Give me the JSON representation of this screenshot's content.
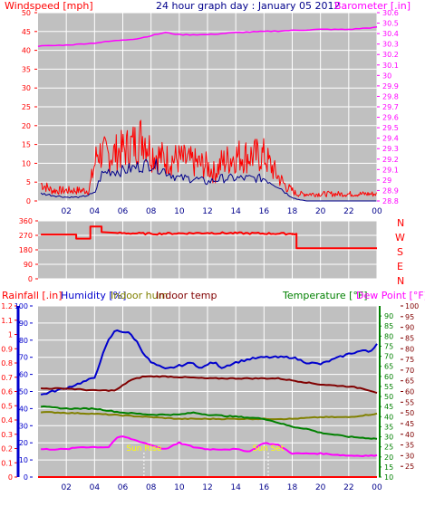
{
  "colors": {
    "background": "#ffffff",
    "plot_bg": "#c0c0c0",
    "grid": "#ffffff",
    "wind": "#ff0000",
    "wind_avg": "#00008b",
    "barometer": "#ff00ff",
    "winddir": "#ff0000",
    "rain": "#ff0000",
    "humidity": "#0000cd",
    "indoor_hum": "#808000",
    "indoor_temp": "#800000",
    "temperature": "#008000",
    "dew_point": "#ff00ff",
    "sunrise_marker": "#ffff00",
    "title": "#00008b"
  },
  "header": {
    "title": "24 hour graph day : January 05 2012",
    "windspeed_label": "Windspeed [mph]",
    "barometer_label": "Barometer [.in]"
  },
  "compass_labels": [
    "N",
    "W",
    "S",
    "E",
    "N"
  ],
  "legend2": {
    "rainfall": "Rainfall [.in]",
    "humidity": "Humidity [%]",
    "indoor_hum": "Indoor hum",
    "indoor_temp": "Indoor temp",
    "temperature": "Temperature [°F]",
    "dew_point": "Dew Point [°F]"
  },
  "sun_labels": {
    "sunrise": "Sun Rise",
    "sunset": "Sun Set"
  },
  "chart_data": [
    {
      "type": "line",
      "title": "24 hour graph day : January 05 2012",
      "x_ticks": [
        "02",
        "04",
        "06",
        "08",
        "10",
        "12",
        "14",
        "16",
        "18",
        "20",
        "22",
        "00"
      ],
      "ylabel": "Windspeed [mph]",
      "ylim": [
        0,
        50
      ],
      "y_ticks": [
        "0",
        "5",
        "10",
        "15",
        "20",
        "25",
        "30",
        "35",
        "40",
        "45",
        "50"
      ],
      "y2label": "Barometer [.in]",
      "y2lim": [
        28.8,
        30.6
      ],
      "y2_ticks": [
        "28.8",
        "28.9",
        "29",
        "29.1",
        "29.2",
        "29.3",
        "29.4",
        "29.5",
        "29.6",
        "29.7",
        "29.8",
        "29.9",
        "30",
        "30.1",
        "30.2",
        "30.3",
        "30.4",
        "30.5",
        "30.6"
      ],
      "grid": true,
      "series": [
        {
          "name": "Windspeed gust",
          "axis": "left",
          "x": [
            0.2,
            1,
            2,
            3,
            3.6,
            4.2,
            5,
            5.6,
            6.2,
            7,
            7.5,
            8,
            8.5,
            9,
            10,
            11,
            12,
            12.5,
            13,
            14,
            15,
            16,
            17,
            17.6,
            18,
            18.3,
            19,
            20,
            21,
            22,
            23,
            24
          ],
          "values": [
            5,
            3,
            3,
            3,
            3,
            14,
            13,
            14,
            15,
            17,
            19,
            14,
            13,
            12,
            12,
            11,
            10,
            8,
            11,
            13,
            13,
            13,
            7,
            4,
            3,
            2,
            2,
            2,
            2,
            2,
            2,
            2
          ]
        },
        {
          "name": "Windspeed",
          "axis": "left",
          "x": [
            0.2,
            1,
            2,
            3,
            4,
            4.5,
            5,
            6,
            7,
            8,
            8.5,
            9,
            10,
            11,
            12,
            13,
            14,
            15,
            16,
            17,
            17.6,
            18,
            18.3,
            19,
            20,
            21,
            22,
            23,
            24
          ],
          "values": [
            2,
            1.5,
            1,
            1,
            2,
            7,
            8,
            8,
            9,
            10,
            9,
            8,
            6,
            6,
            5,
            6,
            6,
            6,
            6,
            4,
            2,
            1,
            0.5,
            0,
            0,
            0,
            0,
            0,
            0
          ]
        },
        {
          "name": "Barometer",
          "axis": "right",
          "x": [
            0,
            2,
            4,
            6,
            7,
            8,
            9,
            10,
            12,
            14,
            16,
            18,
            20,
            22,
            24
          ],
          "values": [
            30.28,
            30.29,
            30.31,
            30.34,
            30.35,
            30.38,
            30.41,
            30.39,
            30.39,
            30.41,
            30.42,
            30.43,
            30.44,
            30.44,
            30.46
          ]
        }
      ]
    },
    {
      "type": "line",
      "ylim": [
        0,
        360
      ],
      "y_ticks": [
        "0",
        "90",
        "180",
        "270",
        "360"
      ],
      "series": [
        {
          "name": "Wind direction",
          "x": [
            0.2,
            2.7,
            2.7,
            3.7,
            3.7,
            4.5,
            4.5,
            5.5,
            8,
            12,
            18,
            18.3,
            18.3,
            24
          ],
          "values": [
            275,
            275,
            250,
            250,
            325,
            325,
            290,
            285,
            280,
            285,
            280,
            280,
            190,
            190
          ]
        }
      ]
    },
    {
      "type": "line",
      "x_ticks": [
        "02",
        "04",
        "06",
        "08",
        "10",
        "12",
        "14",
        "16",
        "18",
        "20",
        "22",
        "00"
      ],
      "rain_ylim": [
        0,
        1.2
      ],
      "rain_ticks": [
        "0",
        "0.1",
        "0.2",
        "0.3",
        "0.4",
        "0.5",
        "0.6",
        "0.7",
        "0.8",
        "0.9",
        "1",
        "1.1",
        "1.2"
      ],
      "humidity_ylim": [
        0,
        100
      ],
      "humidity_ticks": [
        "0",
        "10",
        "20",
        "30",
        "40",
        "50",
        "60",
        "70",
        "80",
        "90",
        "100"
      ],
      "temp_ylim": [
        10,
        95
      ],
      "temp_ticks": [
        "10",
        "15",
        "20",
        "25",
        "30",
        "35",
        "40",
        "45",
        "50",
        "55",
        "60",
        "65",
        "70",
        "75",
        "80",
        "85",
        "90"
      ],
      "dew_ylim": [
        20,
        100
      ],
      "dew_ticks": [
        "25",
        "30",
        "35",
        "40",
        "45",
        "50",
        "55",
        "60",
        "65",
        "70",
        "75",
        "80",
        "85",
        "90",
        "95",
        "100"
      ],
      "grid": true,
      "series": [
        {
          "name": "Humidity",
          "axis": "humidity",
          "x": [
            0.2,
            1,
            2,
            3,
            4,
            4.5,
            5,
            5.5,
            6.5,
            7,
            7.5,
            8,
            8.5,
            9,
            10,
            11,
            11.5,
            12,
            12.5,
            13,
            14,
            15,
            16,
            17,
            18,
            19,
            20,
            21,
            22,
            23,
            23.5,
            24
          ],
          "values": [
            48,
            50,
            52,
            55,
            58,
            70,
            80,
            86,
            84,
            79,
            72,
            67,
            65,
            63,
            65,
            67,
            63,
            66,
            67,
            64,
            67,
            69,
            70,
            70,
            70,
            67,
            66,
            69,
            72,
            74,
            73,
            78
          ]
        },
        {
          "name": "Indoor hum",
          "axis": "humidity",
          "x": [
            0.2,
            2,
            4,
            6,
            8,
            10,
            12,
            14,
            16,
            18,
            20,
            22,
            23,
            24
          ],
          "values": [
            38,
            37.5,
            37,
            36,
            35,
            34,
            34,
            34,
            34,
            34,
            35,
            35,
            36,
            37
          ]
        },
        {
          "name": "Indoor temp",
          "axis": "temp",
          "x": [
            0.2,
            2,
            4,
            5.5,
            6.5,
            7.5,
            9,
            12,
            14,
            16,
            17,
            18,
            20,
            22,
            23,
            24
          ],
          "values": [
            54,
            54,
            53,
            53,
            58,
            60,
            60,
            59,
            59,
            59,
            59,
            58,
            56,
            55,
            54,
            52
          ]
        },
        {
          "name": "Temperature",
          "axis": "temp",
          "x": [
            0.2,
            2,
            4,
            5,
            6,
            8,
            10,
            11,
            12,
            14,
            16,
            17,
            18,
            19,
            20,
            22,
            24
          ],
          "values": [
            45,
            44,
            44,
            43,
            42,
            41,
            41,
            42,
            41,
            40,
            39,
            37,
            35,
            34,
            32,
            30,
            29
          ]
        },
        {
          "name": "Dew Point",
          "axis": "dew",
          "x": [
            0.2,
            2,
            3,
            4,
            5,
            5.5,
            6,
            7,
            8,
            9,
            10,
            11,
            12,
            14,
            15,
            16,
            17,
            18,
            20,
            22,
            24
          ],
          "values": [
            33,
            33,
            34,
            34,
            34,
            38,
            39,
            37,
            35,
            33,
            36,
            34,
            33,
            33,
            32,
            36,
            35,
            31,
            31,
            30,
            30
          ]
        },
        {
          "name": "Rainfall",
          "axis": "rain",
          "x": [
            0,
            24
          ],
          "values": [
            0,
            0
          ]
        }
      ],
      "sun_markers": {
        "sunrise": 7.5,
        "sunset": 16.3
      }
    }
  ]
}
